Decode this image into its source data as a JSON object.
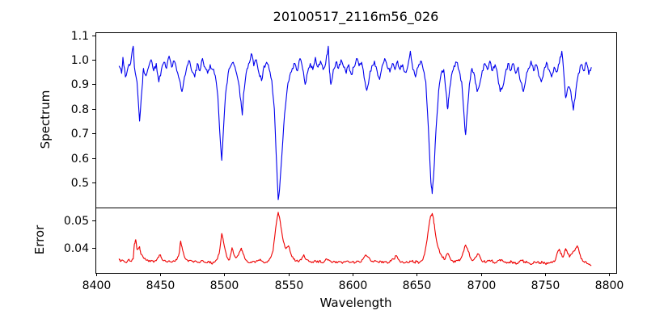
{
  "figure": {
    "background": "#ffffff",
    "text_color": "#000000",
    "spine_color": "#000000"
  },
  "chart_data": {
    "type": "line",
    "title": "20100517_2116m56_026",
    "xlabel": "Wavelength",
    "grid": false,
    "legend": "none",
    "xlim": [
      8399.6,
      8805.4
    ],
    "xticks": {
      "values": [
        8400,
        8450,
        8500,
        8550,
        8600,
        8650,
        8700,
        8750,
        8800
      ],
      "labels": [
        "8400",
        "8450",
        "8500",
        "8550",
        "8600",
        "8650",
        "8700",
        "8750",
        "8800"
      ]
    },
    "panels": [
      {
        "name": "spectrum",
        "ylabel": "Spectrum",
        "color": "#0000ee",
        "ylim": [
          0.398,
          1.112
        ],
        "yticks": {
          "values": [
            0.5,
            0.6,
            0.7,
            0.8,
            0.9,
            1.0,
            1.1
          ],
          "labels": [
            "0.5",
            "0.6",
            "0.7",
            "0.8",
            "0.9",
            "1.0",
            "1.1"
          ]
        },
        "noise": {
          "amp": 0.011,
          "seed": 11,
          "scale_with_value": true
        },
        "points": [
          8418,
          0.975,
          8420,
          0.945,
          8421,
          1.01,
          8423,
          0.93,
          8425,
          0.97,
          8427,
          0.985,
          8429,
          1.055,
          8430,
          0.97,
          8432,
          0.91,
          8434,
          0.75,
          8436,
          0.89,
          8437,
          0.965,
          8439,
          0.935,
          8441,
          0.97,
          8443,
          1.0,
          8445,
          0.955,
          8447,
          0.985,
          8449,
          0.91,
          8451,
          0.96,
          8453,
          0.99,
          8455,
          0.965,
          8457,
          1.015,
          8459,
          0.97,
          8461,
          0.995,
          8463,
          0.955,
          8465,
          0.92,
          8467,
          0.87,
          8469,
          0.93,
          8471,
          0.975,
          8473,
          0.995,
          8475,
          0.95,
          8477,
          0.93,
          8479,
          0.985,
          8481,
          0.955,
          8483,
          1.005,
          8485,
          0.97,
          8487,
          0.945,
          8489,
          0.98,
          8491,
          0.96,
          8493,
          0.935,
          8495,
          0.85,
          8497,
          0.66,
          8498,
          0.59,
          8499,
          0.68,
          8501,
          0.86,
          8503,
          0.945,
          8505,
          0.975,
          8507,
          0.99,
          8509,
          0.955,
          8511,
          0.91,
          8513,
          0.83,
          8514,
          0.775,
          8515,
          0.86,
          8517,
          0.945,
          8519,
          0.985,
          8521,
          1.025,
          8523,
          0.975,
          8525,
          1.0,
          8527,
          0.945,
          8529,
          0.915,
          8531,
          0.975,
          8533,
          0.99,
          8535,
          0.96,
          8537,
          0.915,
          8539,
          0.8,
          8541,
          0.55,
          8542,
          0.43,
          8543,
          0.47,
          8545,
          0.62,
          8547,
          0.78,
          8549,
          0.88,
          8551,
          0.935,
          8553,
          0.965,
          8555,
          0.985,
          8557,
          0.955,
          8559,
          1.005,
          8561,
          0.965,
          8563,
          0.9,
          8565,
          0.95,
          8567,
          0.985,
          8569,
          0.96,
          8571,
          1.01,
          8573,
          0.97,
          8575,
          0.995,
          8577,
          0.96,
          8579,
          0.985,
          8581,
          1.055,
          8582,
          0.95,
          8583,
          0.9,
          8585,
          0.96,
          8587,
          0.99,
          8589,
          0.965,
          8591,
          1.0,
          8593,
          0.97,
          8595,
          0.945,
          8597,
          0.98,
          8599,
          0.94,
          8601,
          0.97,
          8603,
          1.005,
          8605,
          0.975,
          8607,
          0.99,
          8609,
          0.925,
          8611,
          0.875,
          8613,
          0.93,
          8615,
          0.975,
          8617,
          0.995,
          8619,
          0.955,
          8621,
          0.92,
          8623,
          0.975,
          8625,
          1.005,
          8627,
          0.97,
          8629,
          0.95,
          8631,
          0.985,
          8633,
          0.96,
          8635,
          0.995,
          8637,
          0.96,
          8639,
          0.98,
          8641,
          0.95,
          8643,
          0.975,
          8645,
          1.035,
          8647,
          0.96,
          8649,
          0.93,
          8651,
          0.97,
          8653,
          0.995,
          8655,
          0.96,
          8657,
          0.91,
          8659,
          0.72,
          8661,
          0.5,
          8662,
          0.455,
          8663,
          0.52,
          8665,
          0.72,
          8667,
          0.875,
          8669,
          0.945,
          8671,
          0.96,
          8673,
          0.86,
          8674,
          0.8,
          8675,
          0.85,
          8677,
          0.935,
          8679,
          0.975,
          8681,
          0.99,
          8683,
          0.955,
          8685,
          0.91,
          8687,
          0.76,
          8688,
          0.695,
          8689,
          0.77,
          8691,
          0.9,
          8693,
          0.965,
          8695,
          0.935,
          8697,
          0.87,
          8699,
          0.9,
          8701,
          0.955,
          8703,
          0.985,
          8705,
          0.96,
          8707,
          0.995,
          8709,
          0.955,
          8711,
          0.98,
          8713,
          0.935,
          8715,
          0.87,
          8717,
          0.89,
          8719,
          0.945,
          8721,
          0.985,
          8723,
          0.955,
          8725,
          0.985,
          8727,
          0.945,
          8729,
          0.97,
          8731,
          0.91,
          8733,
          0.87,
          8735,
          0.925,
          8737,
          0.965,
          8739,
          0.995,
          8741,
          0.955,
          8743,
          0.98,
          8745,
          0.935,
          8747,
          0.91,
          8749,
          0.955,
          8751,
          0.99,
          8753,
          0.96,
          8755,
          0.93,
          8757,
          0.97,
          8759,
          0.95,
          8761,
          0.985,
          8763,
          1.035,
          8765,
          0.91,
          8766,
          0.845,
          8768,
          0.89,
          8770,
          0.87,
          8772,
          0.795,
          8774,
          0.88,
          8776,
          0.945,
          8778,
          0.98,
          8780,
          0.955,
          8782,
          0.99,
          8784,
          0.94,
          8786,
          0.97
        ]
      },
      {
        "name": "error",
        "ylabel": "Error",
        "color": "#ee0000",
        "ylim": [
          0.0311,
          0.0545
        ],
        "yticks": {
          "values": [
            0.04,
            0.05
          ],
          "labels": [
            "0.04",
            "0.05"
          ]
        },
        "noise": {
          "amp": 0.00045,
          "seed": 5,
          "scale_with_value": false
        },
        "points": [
          8418,
          0.0362,
          8419,
          0.0352,
          8421,
          0.0356,
          8423,
          0.0349,
          8425,
          0.0357,
          8427,
          0.0353,
          8429,
          0.0361,
          8430,
          0.0415,
          8431,
          0.043,
          8432,
          0.0395,
          8434,
          0.0405,
          8435,
          0.0378,
          8437,
          0.0365,
          8439,
          0.0357,
          8441,
          0.0352,
          8443,
          0.0356,
          8445,
          0.0349,
          8447,
          0.0355,
          8449,
          0.0368,
          8450,
          0.0376,
          8451,
          0.0365,
          8453,
          0.0355,
          8455,
          0.0351,
          8457,
          0.0355,
          8459,
          0.0349,
          8461,
          0.0353,
          8463,
          0.0358,
          8465,
          0.0385,
          8466,
          0.0425,
          8467,
          0.0405,
          8468,
          0.0385,
          8470,
          0.036,
          8472,
          0.0352,
          8474,
          0.0356,
          8476,
          0.0349,
          8478,
          0.0353,
          8480,
          0.0349,
          8482,
          0.0355,
          8484,
          0.0351,
          8486,
          0.0347,
          8488,
          0.0353,
          8490,
          0.0344,
          8492,
          0.0349,
          8494,
          0.0358,
          8496,
          0.038,
          8498,
          0.0452,
          8499,
          0.0435,
          8500,
          0.0408,
          8502,
          0.0368,
          8504,
          0.0358,
          8506,
          0.0401,
          8507,
          0.0385,
          8509,
          0.0365,
          8511,
          0.0375,
          8513,
          0.0398,
          8514,
          0.039,
          8516,
          0.0363,
          8518,
          0.0351,
          8520,
          0.0347,
          8522,
          0.0352,
          8524,
          0.0348,
          8526,
          0.0354,
          8528,
          0.036,
          8530,
          0.0352,
          8532,
          0.0348,
          8534,
          0.0354,
          8536,
          0.0365,
          8538,
          0.039,
          8540,
          0.047,
          8542,
          0.0528,
          8543,
          0.051,
          8544,
          0.0478,
          8546,
          0.0425,
          8548,
          0.0398,
          8550,
          0.0408,
          8552,
          0.0378,
          8554,
          0.036,
          8556,
          0.0354,
          8558,
          0.0351,
          8560,
          0.0358,
          8562,
          0.0376,
          8564,
          0.0359,
          8566,
          0.0352,
          8568,
          0.0348,
          8570,
          0.0353,
          8572,
          0.0349,
          8574,
          0.0354,
          8576,
          0.0348,
          8578,
          0.0352,
          8580,
          0.036,
          8582,
          0.0355,
          8584,
          0.0348,
          8586,
          0.0352,
          8588,
          0.0347,
          8590,
          0.0351,
          8592,
          0.0345,
          8594,
          0.035,
          8596,
          0.0354,
          8598,
          0.0348,
          8600,
          0.0352,
          8602,
          0.0348,
          8604,
          0.0353,
          8606,
          0.0349,
          8608,
          0.036,
          8610,
          0.0375,
          8612,
          0.0368,
          8614,
          0.0355,
          8616,
          0.035,
          8618,
          0.0354,
          8620,
          0.0349,
          8622,
          0.0353,
          8624,
          0.0347,
          8626,
          0.0352,
          8628,
          0.0348,
          8630,
          0.0354,
          8632,
          0.036,
          8634,
          0.0373,
          8636,
          0.0358,
          8638,
          0.035,
          8640,
          0.0346,
          8642,
          0.0352,
          8644,
          0.0348,
          8646,
          0.0353,
          8648,
          0.0349,
          8650,
          0.0352,
          8652,
          0.0348,
          8654,
          0.0355,
          8656,
          0.0378,
          8658,
          0.043,
          8660,
          0.0498,
          8661,
          0.0515,
          8662,
          0.0524,
          8663,
          0.0505,
          8664,
          0.0468,
          8666,
          0.0412,
          8668,
          0.0382,
          8670,
          0.0366,
          8672,
          0.036,
          8674,
          0.0381,
          8676,
          0.0364,
          8678,
          0.0354,
          8680,
          0.035,
          8682,
          0.0355,
          8684,
          0.036,
          8686,
          0.0384,
          8688,
          0.0411,
          8690,
          0.0389,
          8692,
          0.0364,
          8694,
          0.0357,
          8696,
          0.0368,
          8698,
          0.0379,
          8700,
          0.036,
          8702,
          0.0352,
          8704,
          0.0349,
          8706,
          0.0354,
          8708,
          0.0355,
          8710,
          0.0349,
          8712,
          0.0348,
          8714,
          0.0356,
          8716,
          0.0359,
          8718,
          0.0351,
          8720,
          0.0346,
          8722,
          0.035,
          8724,
          0.0351,
          8726,
          0.0346,
          8728,
          0.0345,
          8730,
          0.035,
          8732,
          0.0355,
          8734,
          0.0351,
          8736,
          0.0348,
          8738,
          0.0345,
          8740,
          0.0344,
          8742,
          0.035,
          8744,
          0.0351,
          8746,
          0.0347,
          8748,
          0.0349,
          8750,
          0.0345,
          8752,
          0.0344,
          8754,
          0.0348,
          8756,
          0.0351,
          8758,
          0.0358,
          8760,
          0.039,
          8761,
          0.0396,
          8762,
          0.038,
          8764,
          0.0368,
          8766,
          0.0398,
          8767,
          0.0388,
          8769,
          0.0368,
          8771,
          0.038,
          8773,
          0.039,
          8775,
          0.0408,
          8776,
          0.0398,
          8778,
          0.0362,
          8780,
          0.0352,
          8782,
          0.035,
          8784,
          0.0342,
          8786,
          0.0338
        ]
      }
    ]
  }
}
